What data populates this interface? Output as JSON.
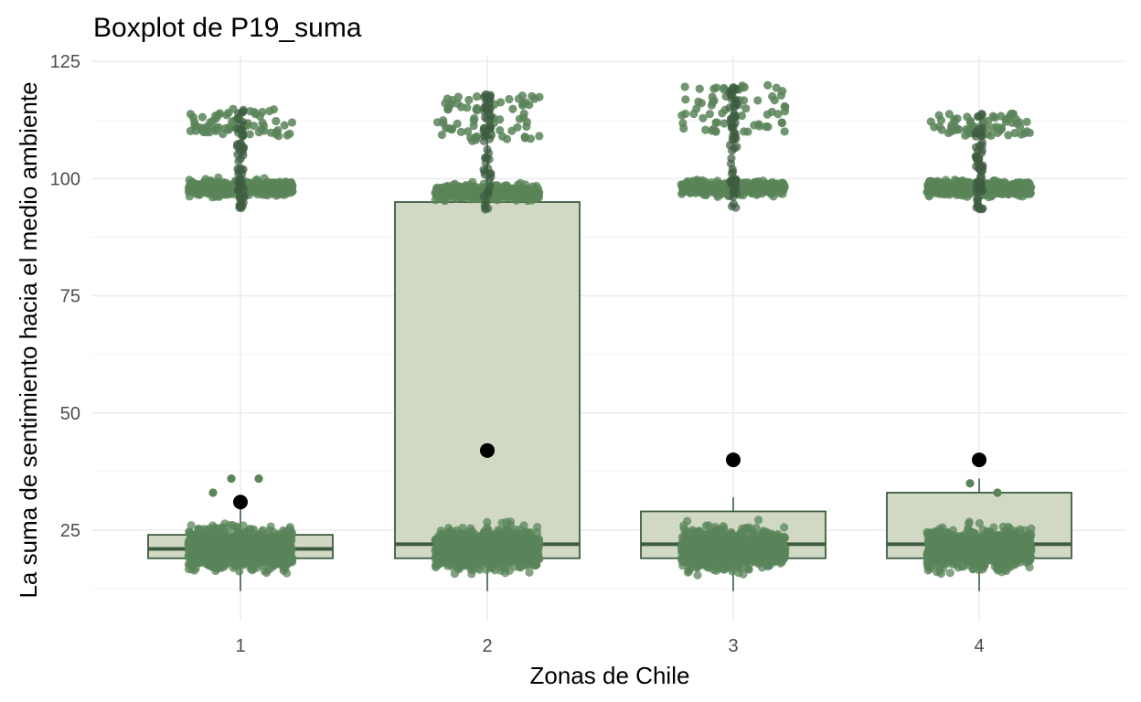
{
  "chart_data": {
    "type": "boxplot",
    "title": "Boxplot de P19_suma",
    "xlabel": "Zonas de Chile",
    "ylabel": "La suma de sentimiento hacia el medio ambiente",
    "categories": [
      "1",
      "2",
      "3",
      "4"
    ],
    "ylim": [
      10,
      125
    ],
    "yticks": [
      25,
      50,
      75,
      100,
      125
    ],
    "grid": true,
    "legend": "none",
    "colors": {
      "box_fill": "#d1d9c5",
      "box_line": "#3d5c40",
      "points": "#5a8459",
      "points_light": "#7e9870",
      "mean_point": "#000000"
    },
    "boxes": [
      {
        "category": "1",
        "whisker_low": 12,
        "q1": 19,
        "median": 21,
        "q3": 24,
        "whisker_high": 31,
        "mean": 31
      },
      {
        "category": "2",
        "whisker_low": 12,
        "q1": 19,
        "median": 22,
        "q3": 95,
        "whisker_high": 118,
        "mean": 42
      },
      {
        "category": "3",
        "whisker_low": 12,
        "q1": 19,
        "median": 22,
        "q3": 29,
        "whisker_high": 32,
        "mean": 40
      },
      {
        "category": "4",
        "whisker_low": 12,
        "q1": 19,
        "median": 22,
        "q3": 33,
        "whisker_high": 36,
        "mean": 40
      }
    ],
    "jitter_clusters": [
      {
        "category": "1",
        "low_range": [
          12,
          31
        ],
        "low_center": 21,
        "high_range": [
          92,
          115
        ],
        "high_center": 98,
        "outliers": [
          36,
          36,
          33
        ]
      },
      {
        "category": "2",
        "low_range": [
          12,
          32
        ],
        "low_center": 21,
        "high_range": [
          91,
          118
        ],
        "high_center": 97,
        "outliers": []
      },
      {
        "category": "3",
        "low_range": [
          11,
          31
        ],
        "low_center": 21,
        "high_range": [
          93,
          120
        ],
        "high_center": 98,
        "outliers": []
      },
      {
        "category": "4",
        "low_range": [
          12,
          32
        ],
        "low_center": 21,
        "high_range": [
          92,
          114
        ],
        "high_center": 98,
        "outliers": [
          35,
          33
        ]
      }
    ]
  }
}
